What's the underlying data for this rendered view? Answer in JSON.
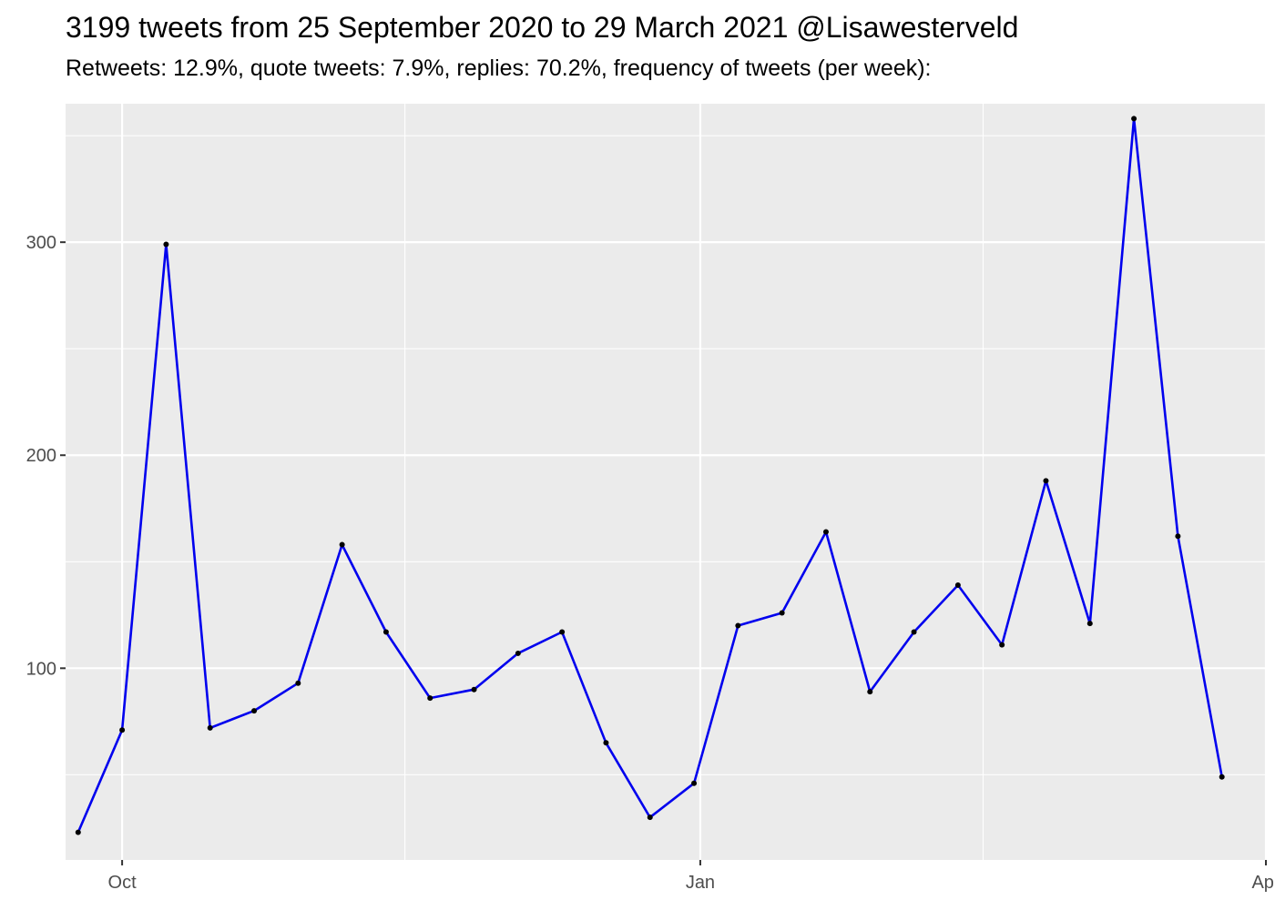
{
  "chart_data": {
    "type": "line",
    "title": "3199 tweets from 25 September 2020 to 29 March 2021 @Lisawesterveld",
    "subtitle": "Retweets: 12.9%, quote tweets: 7.9%, replies: 70.2%, frequency of tweets (per week):",
    "xlabel": "",
    "ylabel": "",
    "x_type": "date",
    "xlim": [
      "2020-09-22",
      "2021-04-01"
    ],
    "ylim": [
      10,
      365
    ],
    "x_ticks": [
      {
        "date": "2020-10-01",
        "label": "Oct"
      },
      {
        "date": "2021-01-01",
        "label": "Jan"
      },
      {
        "date": "2021-04-01",
        "label": "Apr"
      }
    ],
    "x_minor_ticks": [
      "2020-11-15",
      "2021-02-15"
    ],
    "y_ticks": [
      100,
      200,
      300
    ],
    "y_minor_ticks": [
      50,
      150,
      250,
      350
    ],
    "grid": true,
    "line_color": "#0000ee",
    "point_color": "#000000",
    "panel_color": "#ebebeb",
    "grid_color": "#ffffff",
    "series": [
      {
        "x": [
          "2020-09-24",
          "2020-10-01",
          "2020-10-08",
          "2020-10-15",
          "2020-10-22",
          "2020-10-29",
          "2020-11-05",
          "2020-11-12",
          "2020-11-19",
          "2020-11-26",
          "2020-12-03",
          "2020-12-10",
          "2020-12-17",
          "2020-12-24",
          "2020-12-31",
          "2021-01-07",
          "2021-01-14",
          "2021-01-21",
          "2021-01-28",
          "2021-02-04",
          "2021-02-11",
          "2021-02-18",
          "2021-02-25",
          "2021-03-04",
          "2021-03-11",
          "2021-03-18",
          "2021-03-25"
        ],
        "values": [
          23,
          71,
          299,
          72,
          80,
          93,
          158,
          117,
          86,
          90,
          107,
          117,
          65,
          30,
          46,
          120,
          126,
          164,
          89,
          117,
          139,
          111,
          188,
          121,
          358,
          162,
          49
        ]
      }
    ]
  }
}
